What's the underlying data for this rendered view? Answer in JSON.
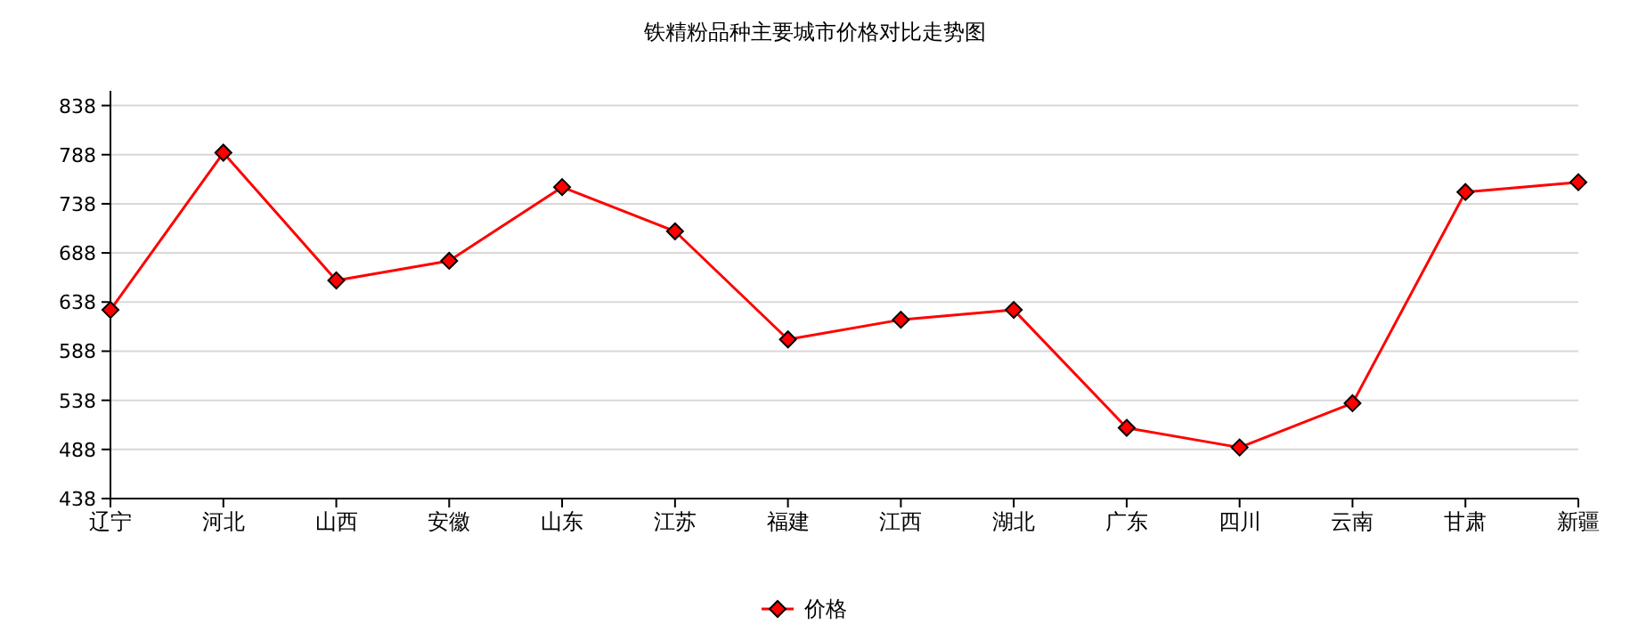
{
  "chart_data": {
    "type": "line",
    "title": "铁精粉品种主要城市价格对比走势图",
    "categories": [
      "辽宁",
      "河北",
      "山西",
      "安徽",
      "山东",
      "江苏",
      "福建",
      "江西",
      "湖北",
      "广东",
      "四川",
      "云南",
      "甘肃",
      "新疆"
    ],
    "series": [
      {
        "name": "价格",
        "color": "#ff0000",
        "values": [
          630,
          790,
          660,
          680,
          755,
          710,
          600,
          620,
          630,
          510,
          490,
          535,
          750,
          760
        ]
      }
    ],
    "ylim": [
      438,
      853
    ],
    "yticks": [
      438,
      488,
      538,
      588,
      638,
      688,
      738,
      788,
      838
    ],
    "grid": "y",
    "legend": "bottom",
    "marker": "diamond",
    "line_style": "solid"
  }
}
